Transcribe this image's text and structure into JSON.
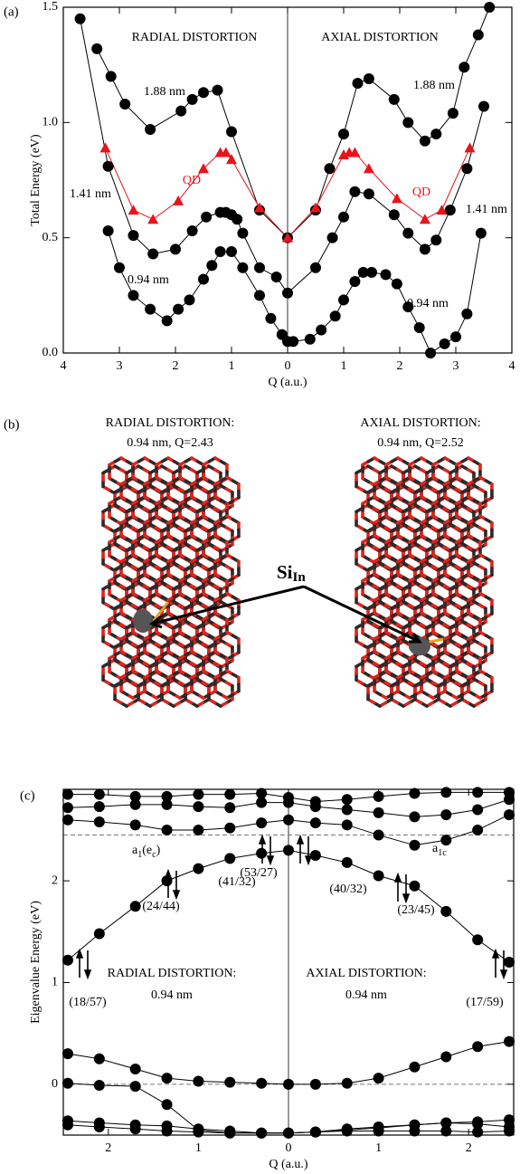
{
  "chart_data": [
    {
      "type": "line",
      "panel_label": "(a)",
      "y_label": "Total Energy (eV)",
      "x_label": "Q (a.u.)",
      "xlim": [
        -4,
        4
      ],
      "ylim": [
        0,
        1.5
      ],
      "xticks": [
        {
          "value": -4,
          "label": "4"
        },
        {
          "value": -3,
          "label": "3"
        },
        {
          "value": -2,
          "label": "2"
        },
        {
          "value": -1,
          "label": "1"
        },
        0,
        1,
        2,
        3,
        4
      ],
      "yticks": [
        {
          "value": 0,
          "label": "0.0"
        },
        0.5,
        {
          "value": 1,
          "label": "1.0"
        },
        1.5
      ],
      "annotations": [
        "RADIAL DISTORTION",
        "AXIAL DISTORTION"
      ],
      "series": [
        {
          "name": "1.88 nm",
          "color": "#000000",
          "marker": "circle",
          "x": [
            -3.4,
            -3.15,
            -2.9,
            -2.45,
            -1.9,
            -1.7,
            -1.5,
            -1.25,
            -1.0,
            -0.5,
            0,
            0.5,
            0.75,
            1.0,
            1.25,
            1.45,
            1.9,
            2.15,
            2.45,
            2.65,
            2.95,
            3.15,
            3.4,
            3.6
          ],
          "values": [
            1.32,
            1.2,
            1.08,
            0.97,
            1.05,
            1.1,
            1.13,
            1.14,
            0.96,
            0.62,
            0.5,
            0.62,
            0.8,
            0.95,
            1.17,
            1.19,
            1.1,
            1.0,
            0.92,
            0.95,
            1.04,
            1.24,
            1.38,
            1.5
          ]
        },
        {
          "name": "1.41 nm",
          "color": "#000000",
          "marker": "circle",
          "x": [
            -3.7,
            -3.2,
            -2.75,
            -2.4,
            -2.0,
            -1.7,
            -1.45,
            -1.2,
            -1.1,
            -1.0,
            -0.9,
            -0.8,
            -0.5,
            -0.2,
            0,
            0.5,
            0.8,
            1.0,
            1.2,
            1.45,
            1.9,
            2.15,
            2.45,
            2.65,
            2.9,
            3.2,
            3.5
          ],
          "values": [
            1.45,
            0.81,
            0.51,
            0.43,
            0.45,
            0.53,
            0.59,
            0.61,
            0.61,
            0.6,
            0.58,
            0.52,
            0.37,
            0.33,
            0.26,
            0.37,
            0.5,
            0.59,
            0.7,
            0.69,
            0.6,
            0.52,
            0.45,
            0.49,
            0.62,
            0.8,
            1.07
          ]
        },
        {
          "name": "0.94 nm",
          "color": "#000000",
          "marker": "circle",
          "x": [
            -3.2,
            -3.0,
            -2.75,
            -2.45,
            -2.15,
            -1.95,
            -1.75,
            -1.5,
            -1.35,
            -1.2,
            -1.0,
            -0.8,
            -0.5,
            -0.3,
            -0.1,
            0,
            0.1,
            0.4,
            0.6,
            0.85,
            1.0,
            1.2,
            1.35,
            1.5,
            1.75,
            1.95,
            2.15,
            2.35,
            2.55,
            2.8,
            3.0,
            3.2,
            3.45
          ],
          "values": [
            0.53,
            0.37,
            0.25,
            0.19,
            0.14,
            0.19,
            0.23,
            0.32,
            0.38,
            0.44,
            0.44,
            0.37,
            0.25,
            0.15,
            0.08,
            0.05,
            0.05,
            0.06,
            0.1,
            0.16,
            0.23,
            0.31,
            0.35,
            0.35,
            0.34,
            0.3,
            0.2,
            0.11,
            0,
            0.04,
            0.07,
            0.17,
            0.52
          ]
        },
        {
          "name": "QD",
          "color": "#e8141b",
          "marker": "triangle",
          "x": [
            -3.25,
            -2.75,
            -2.4,
            -1.95,
            -1.5,
            -1.2,
            -1.1,
            -1.0,
            -0.5,
            0,
            0.5,
            1.0,
            1.1,
            1.2,
            1.45,
            1.95,
            2.45,
            2.75,
            3.25
          ],
          "values": [
            0.89,
            0.62,
            0.58,
            0.66,
            0.8,
            0.87,
            0.87,
            0.84,
            0.63,
            0.5,
            0.63,
            0.86,
            0.87,
            0.87,
            0.8,
            0.67,
            0.58,
            0.62,
            0.89
          ]
        }
      ]
    },
    {
      "type": "line",
      "panel_label": "(c)",
      "y_label": "Eigenvalue Energy (eV)",
      "x_label": "Q (a.u.)",
      "xlim": [
        -2.5,
        2.5
      ],
      "ylim": [
        -0.5,
        2.9
      ],
      "xticks": [
        {
          "value": -2,
          "label": "2"
        },
        {
          "value": -1,
          "label": "1"
        },
        0,
        1,
        2
      ],
      "yticks": [
        0,
        1,
        2
      ],
      "hlines": [
        0,
        2.45
      ],
      "annotations": [
        "(18/57)",
        "(24/44)",
        "(41/32)",
        "(53/27)",
        "(40/32)",
        "(23/45)",
        "(17/59)",
        "RADIAL DISTORTION:",
        "0.94 nm",
        "AXIAL DISTORTION:",
        "0.94 nm"
      ],
      "level_labels": [
        [
          "a",
          "1",
          "(e",
          "c",
          ")"
        ],
        [
          "a",
          "1c"
        ]
      ],
      "x": [
        -2.45,
        -2.1,
        -1.7,
        -1.35,
        -1.0,
        -0.65,
        -0.3,
        0,
        0.3,
        0.65,
        1.0,
        1.4,
        1.75,
        2.1,
        2.45
      ],
      "series": [
        {
          "color": "#000000",
          "marker": "circle",
          "values": [
            2.85,
            2.85,
            2.83,
            2.83,
            2.85,
            2.85,
            2.86,
            2.82,
            2.78,
            2.8,
            2.83,
            2.86,
            2.87,
            2.87,
            2.87
          ]
        },
        {
          "color": "#000000",
          "marker": "circle",
          "values": [
            2.72,
            2.73,
            2.75,
            2.75,
            2.73,
            2.72,
            2.77,
            2.77,
            2.73,
            2.7,
            2.67,
            2.63,
            2.65,
            2.7,
            2.8
          ]
        },
        {
          "color": "#000000",
          "marker": "circle",
          "values": [
            2.6,
            2.58,
            2.55,
            2.5,
            2.5,
            2.52,
            2.57,
            2.6,
            2.57,
            2.55,
            2.45,
            2.35,
            2.4,
            2.5,
            2.65
          ]
        },
        {
          "color": "#000000",
          "marker": "circle",
          "values": [
            1.22,
            1.48,
            1.75,
            2.0,
            2.12,
            2.22,
            2.27,
            2.3,
            2.25,
            2.18,
            2.05,
            1.95,
            1.7,
            1.42,
            1.2
          ]
        },
        {
          "color": "#000000",
          "marker": "circle",
          "values": [
            0.3,
            0.25,
            0.15,
            0.06,
            0.03,
            0.02,
            0.01,
            0.0,
            0.0,
            0.01,
            0.06,
            0.17,
            0.27,
            0.37,
            0.42
          ]
        },
        {
          "color": "#000000",
          "marker": "circle",
          "values": [
            0.01,
            -0.01,
            -0.02,
            -0.2,
            -0.45,
            -0.48,
            -0.48,
            -0.48,
            -0.47,
            -0.45,
            -0.43,
            -0.4,
            -0.38,
            -0.37,
            -0.35
          ]
        },
        {
          "color": "#000000",
          "marker": "circle",
          "values": [
            -0.36,
            -0.38,
            -0.4,
            -0.41,
            -0.44,
            -0.46,
            -0.48,
            -0.48,
            -0.47,
            -0.44,
            -0.42,
            -0.4,
            -0.38,
            -0.39,
            -0.42
          ]
        },
        {
          "color": "#000000",
          "marker": "circle",
          "values": [
            -0.4,
            -0.42,
            -0.44,
            -0.46,
            -0.47,
            -0.48,
            -0.48,
            -0.48,
            -0.47,
            -0.46,
            -0.46,
            -0.46,
            -0.46,
            -0.47,
            -0.46
          ]
        }
      ]
    }
  ],
  "panel_b": {
    "label": "(b)",
    "left": [
      "RADIAL DISTORTION:",
      "0.94 nm, Q=2.43"
    ],
    "right": [
      "AXIAL DISTORTION:",
      "0.94 nm, Q=2.52"
    ],
    "site": [
      "Si",
      "In"
    ]
  }
}
